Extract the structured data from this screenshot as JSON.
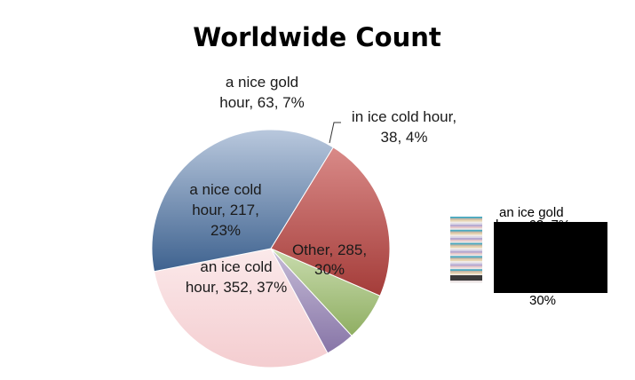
{
  "chart_data": {
    "type": "pie",
    "title": "Worldwide Count",
    "slices": [
      {
        "label": "Other",
        "value": 285,
        "percent": "30%",
        "text": [
          "Other, 285,",
          "30%"
        ],
        "color_light": "#fbe9ea",
        "color_dark": "#f4cdd0"
      },
      {
        "label": "an ice cold hour",
        "value": 352,
        "percent": "37%",
        "text": [
          "an ice cold",
          "hour, 352, 37%"
        ],
        "color_light": "#b9c8dd",
        "color_dark": "#3e628f"
      },
      {
        "label": "a nice cold hour",
        "value": 217,
        "percent": "23%",
        "text": [
          "a nice cold",
          "hour, 217,",
          "23%"
        ],
        "color_light": "#d98a88",
        "color_dark": "#a43c39"
      },
      {
        "label": "a nice gold hour",
        "value": 63,
        "percent": "7%",
        "text": [
          "a nice gold",
          "hour, 63, 7%"
        ],
        "color_light": "#c9dcae",
        "color_dark": "#8fae62"
      },
      {
        "label": "in ice cold hour",
        "value": 38,
        "percent": "4%",
        "text": [
          "in ice cold hour,",
          "38, 4%"
        ],
        "color_light": "#c6bcd7",
        "color_dark": "#8775a7"
      }
    ],
    "legend": {
      "placement": "right",
      "garbled_text": [
        "an ice gold",
        "hour, 63, 7%",
        "30%"
      ]
    }
  }
}
